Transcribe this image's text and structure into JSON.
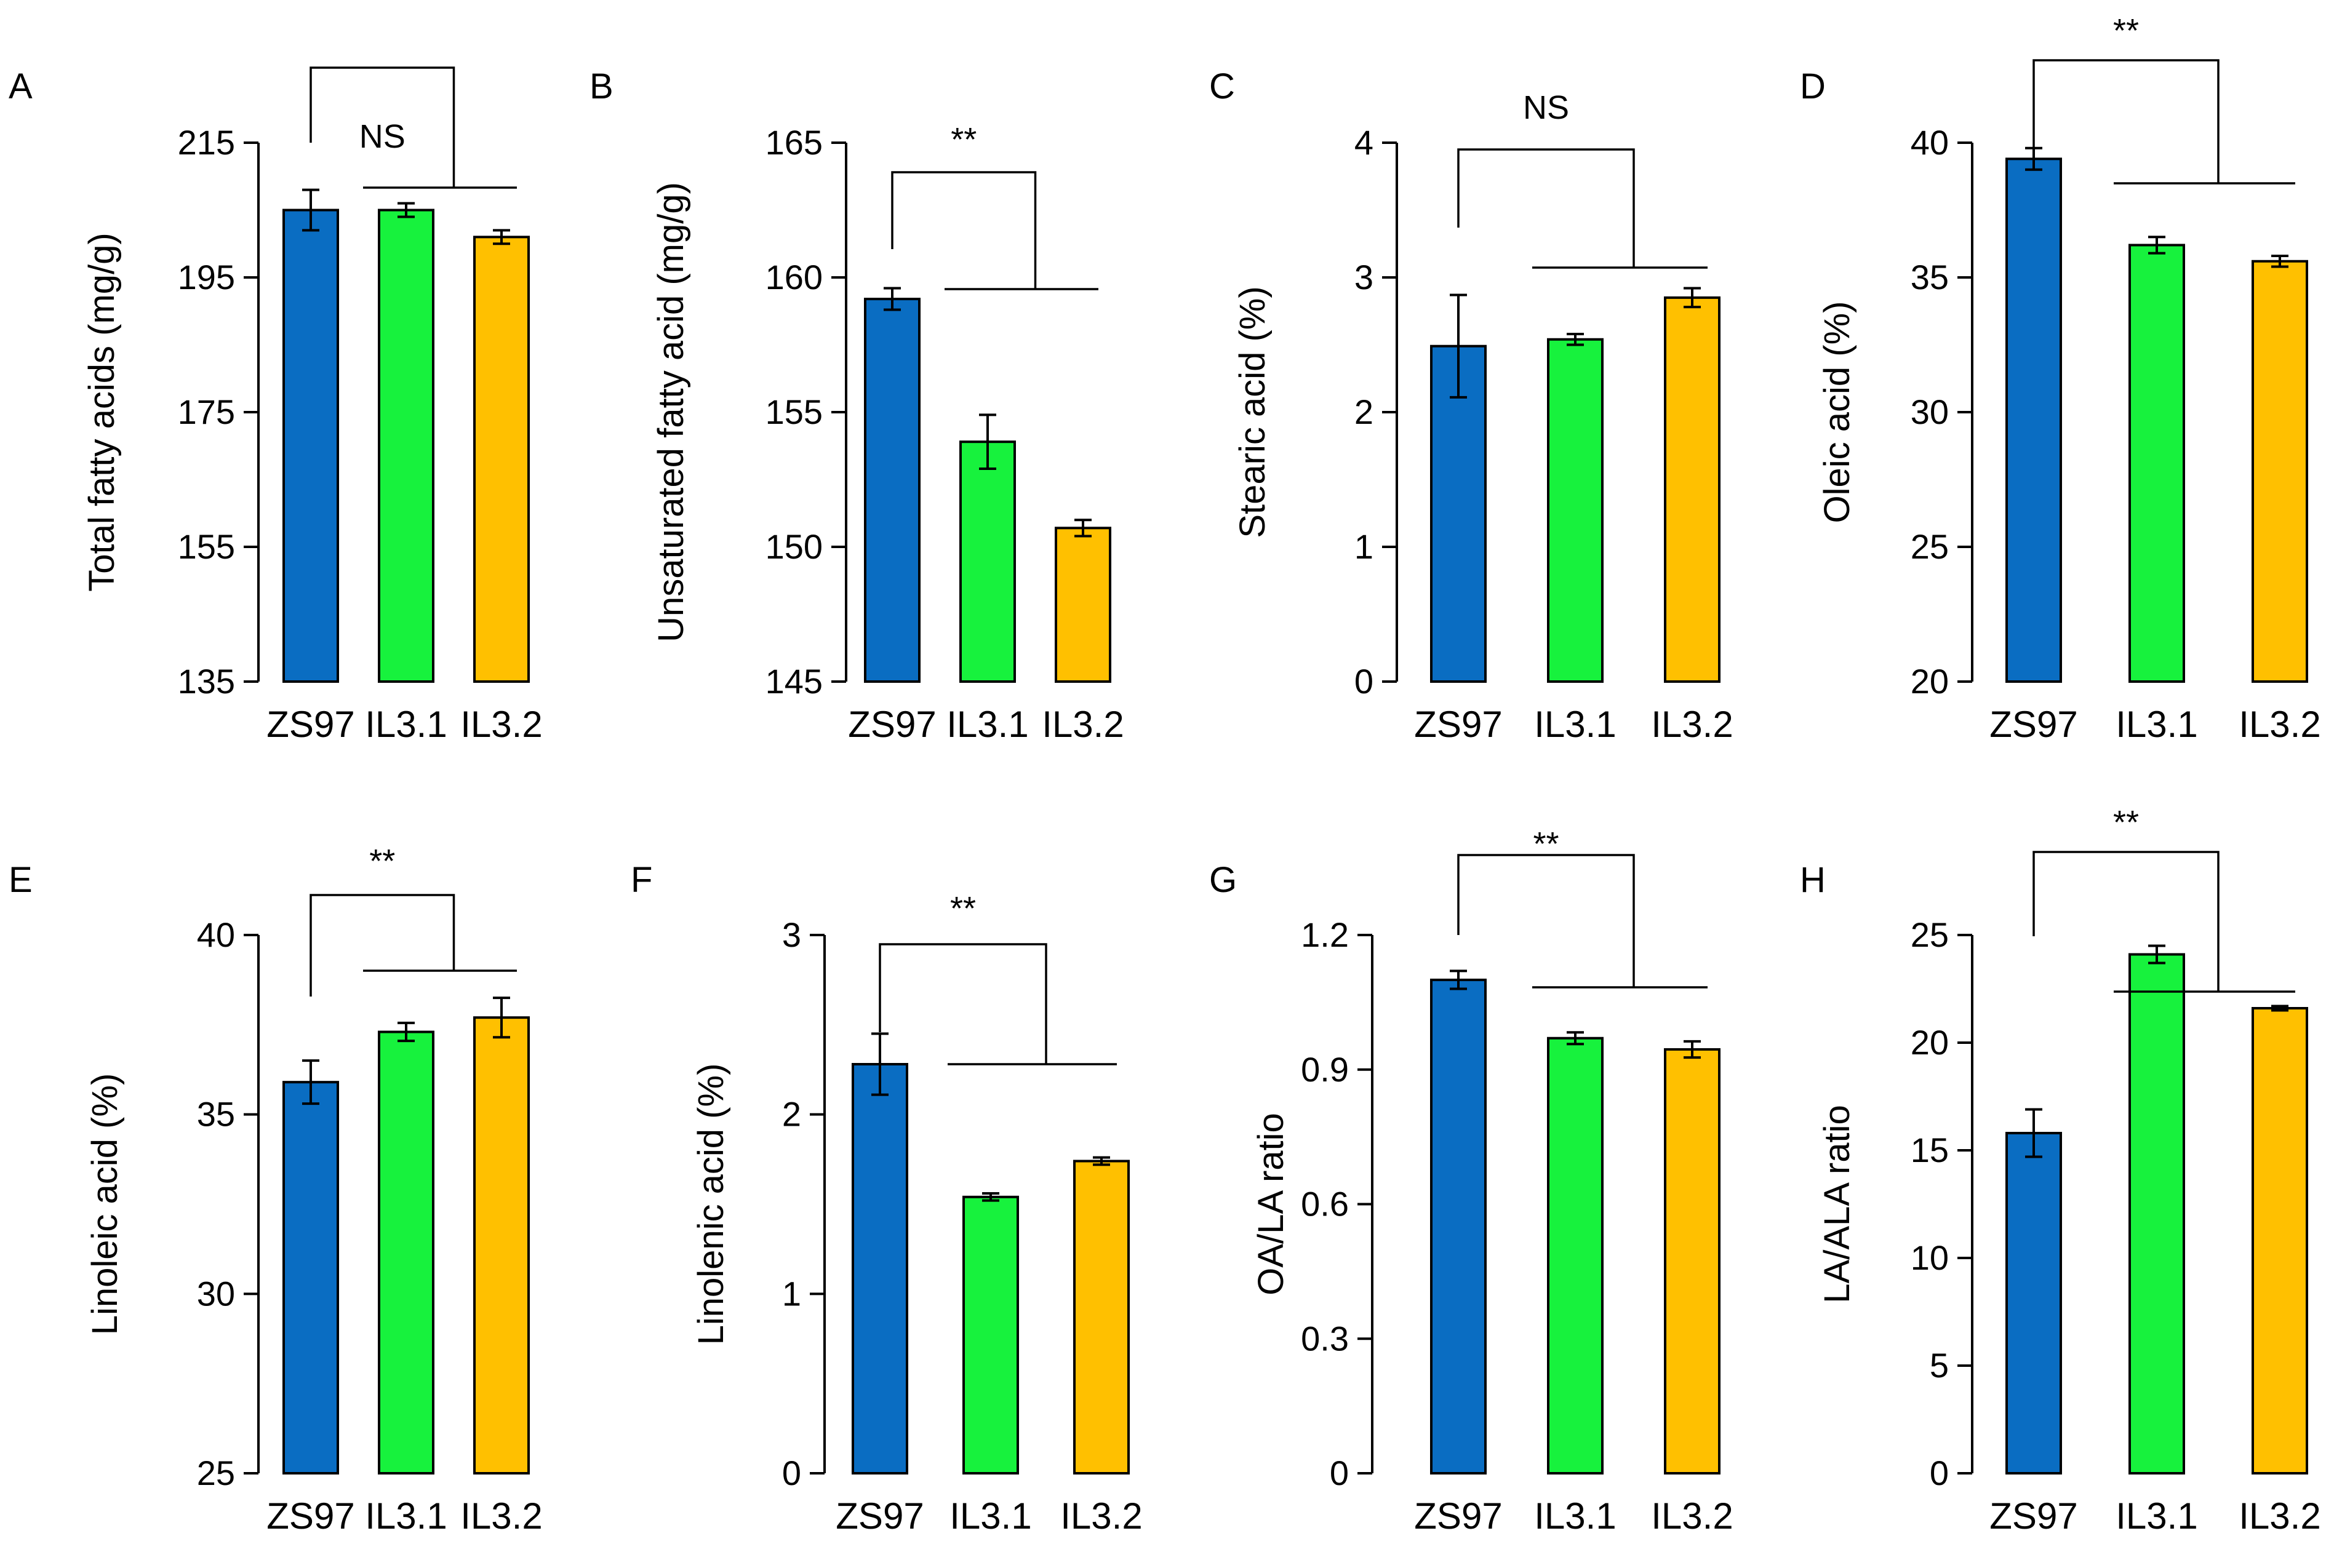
{
  "figure": {
    "categories": [
      "ZS97",
      "IL3.1",
      "IL3.2"
    ],
    "colors": {
      "ZS97": "#0a6dc2",
      "IL3.1": "#17f23d",
      "IL3.2": "#ffc000",
      "stroke": "#000000"
    }
  },
  "chart_data": [
    {
      "panel": "A",
      "type": "bar",
      "categories": [
        "ZS97",
        "IL3.1",
        "IL3.2"
      ],
      "values": [
        205,
        205,
        201
      ],
      "errors": [
        3,
        1,
        1
      ],
      "ylabel": "Total fatty acids (mg/g)",
      "ylim": [
        135,
        215
      ],
      "yticks": [
        135,
        155,
        175,
        195,
        215
      ],
      "ytick_labels": [
        "135",
        "155",
        "175",
        "195",
        "215"
      ],
      "significance": "NS",
      "grid": false,
      "legend": "none"
    },
    {
      "panel": "B",
      "type": "bar",
      "categories": [
        "ZS97",
        "IL3.1",
        "IL3.2"
      ],
      "values": [
        159.2,
        153.9,
        150.7
      ],
      "errors": [
        0.4,
        1.0,
        0.3
      ],
      "ylabel": "Unsaturated fatty acid (mg/g)",
      "ylim": [
        145,
        165
      ],
      "yticks": [
        145,
        150,
        155,
        160,
        165
      ],
      "ytick_labels": [
        "145",
        "150",
        "155",
        "160",
        "165"
      ],
      "significance": "**",
      "grid": false,
      "legend": "none"
    },
    {
      "panel": "C",
      "type": "bar",
      "categories": [
        "ZS97",
        "IL3.1",
        "IL3.2"
      ],
      "values": [
        2.49,
        2.54,
        2.85
      ],
      "errors": [
        0.38,
        0.04,
        0.07
      ],
      "ylabel": "Stearic acid (%)",
      "ylim": [
        0,
        4
      ],
      "yticks": [
        0,
        1,
        2,
        3,
        4
      ],
      "ytick_labels": [
        "0",
        "1",
        "2",
        "3",
        "4"
      ],
      "significance": "NS",
      "grid": false,
      "legend": "none"
    },
    {
      "panel": "D",
      "type": "bar",
      "categories": [
        "ZS97",
        "IL3.1",
        "IL3.2"
      ],
      "values": [
        39.4,
        36.2,
        35.6
      ],
      "errors": [
        0.4,
        0.3,
        0.2
      ],
      "ylabel": "Oleic acid (%)",
      "ylim": [
        20,
        40
      ],
      "yticks": [
        20,
        25,
        30,
        35,
        40
      ],
      "ytick_labels": [
        "20",
        "25",
        "30",
        "35",
        "40"
      ],
      "significance": "**",
      "grid": false,
      "legend": "none"
    },
    {
      "panel": "E",
      "type": "bar",
      "categories": [
        "ZS97",
        "IL3.1",
        "IL3.2"
      ],
      "values": [
        35.9,
        37.3,
        37.7
      ],
      "errors": [
        0.6,
        0.25,
        0.55
      ],
      "ylabel": "Linoleic acid (%)",
      "ylim": [
        25,
        40
      ],
      "yticks": [
        25,
        30,
        35,
        40
      ],
      "ytick_labels": [
        "25",
        "30",
        "35",
        "40"
      ],
      "significance": "**",
      "grid": false,
      "legend": "none"
    },
    {
      "panel": "F",
      "type": "bar",
      "categories": [
        "ZS97",
        "IL3.1",
        "IL3.2"
      ],
      "values": [
        2.28,
        1.54,
        1.74
      ],
      "errors": [
        0.17,
        0.02,
        0.02
      ],
      "ylabel": "Linolenic acid (%)",
      "ylim": [
        0,
        3
      ],
      "yticks": [
        0,
        1,
        2,
        3
      ],
      "ytick_labels": [
        "0",
        "1",
        "2",
        "3"
      ],
      "significance": "**",
      "grid": false,
      "legend": "none"
    },
    {
      "panel": "G",
      "type": "bar",
      "categories": [
        "ZS97",
        "IL3.1",
        "IL3.2"
      ],
      "values": [
        1.1,
        0.97,
        0.945
      ],
      "errors": [
        0.02,
        0.013,
        0.018
      ],
      "ylabel": "OA/LA ratio",
      "ylim": [
        0,
        1.2
      ],
      "yticks": [
        0,
        0.3,
        0.6,
        0.9,
        1.2
      ],
      "ytick_labels": [
        "0",
        "0.3",
        "0.6",
        "0.9",
        "1.2"
      ],
      "significance": "**",
      "grid": false,
      "legend": "none"
    },
    {
      "panel": "H",
      "type": "bar",
      "categories": [
        "ZS97",
        "IL3.1",
        "IL3.2"
      ],
      "values": [
        15.8,
        24.1,
        21.6
      ],
      "errors": [
        1.1,
        0.4,
        0.1
      ],
      "ylabel": "LA/ALA ratio",
      "ylim": [
        0,
        25
      ],
      "yticks": [
        0,
        5,
        10,
        15,
        20,
        25
      ],
      "ytick_labels": [
        "0",
        "5",
        "10",
        "15",
        "20",
        "25"
      ],
      "significance": "**",
      "grid": false,
      "legend": "none"
    }
  ]
}
